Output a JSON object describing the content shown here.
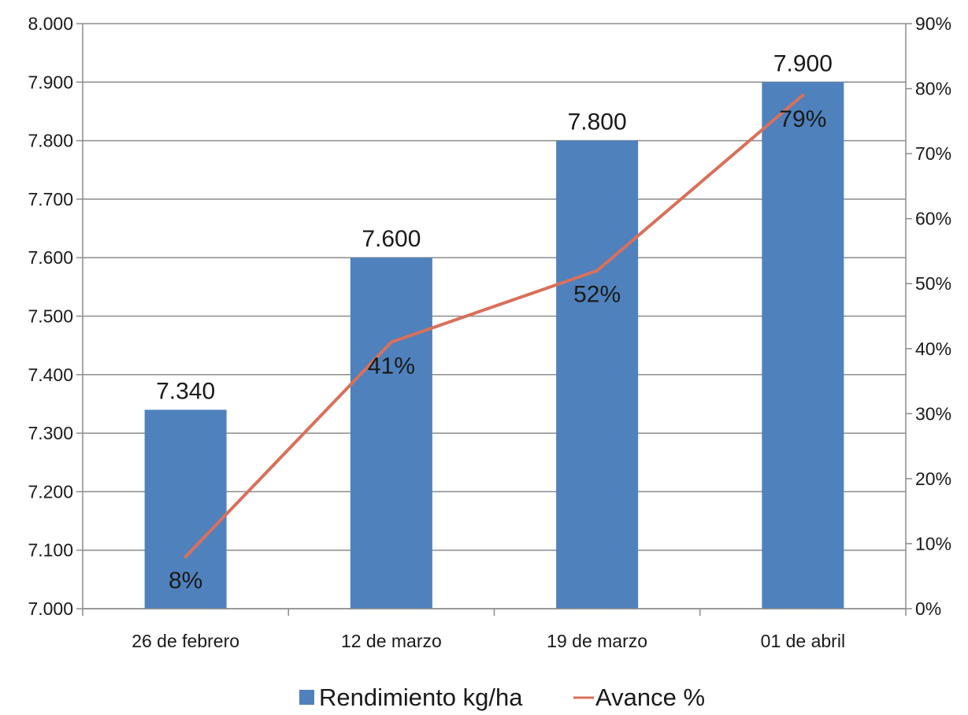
{
  "chart_data": {
    "type": "bar",
    "categories": [
      "26 de febrero",
      "12 de marzo",
      "19 de marzo",
      "01 de abril"
    ],
    "series": [
      {
        "name": "Rendimiento kg/ha",
        "type": "bar",
        "axis": "left",
        "color": "#4f81bd",
        "values": [
          7340,
          7600,
          7800,
          7900
        ],
        "labels": [
          "7.340",
          "7.600",
          "7.800",
          "7.900"
        ]
      },
      {
        "name": "Avance %",
        "type": "line",
        "axis": "right",
        "color": "#d9705a",
        "values": [
          8,
          41,
          52,
          79
        ],
        "labels": [
          "8%",
          "41%",
          "52%",
          "79%"
        ]
      }
    ],
    "y_left": {
      "range": [
        7000,
        8000
      ],
      "ticks": [
        7000,
        7100,
        7200,
        7300,
        7400,
        7500,
        7600,
        7700,
        7800,
        7900,
        8000
      ],
      "tick_labels": [
        "7.000",
        "7.100",
        "7.200",
        "7.300",
        "7.400",
        "7.500",
        "7.600",
        "7.700",
        "7.800",
        "7.900",
        "8.000"
      ]
    },
    "y_right": {
      "range": [
        0,
        90
      ],
      "ticks": [
        0,
        10,
        20,
        30,
        40,
        50,
        60,
        70,
        80,
        90
      ],
      "tick_labels": [
        "0%",
        "10%",
        "20%",
        "30%",
        "40%",
        "50%",
        "60%",
        "70%",
        "80%",
        "90%"
      ]
    },
    "grid": true,
    "legend": "bottom"
  }
}
